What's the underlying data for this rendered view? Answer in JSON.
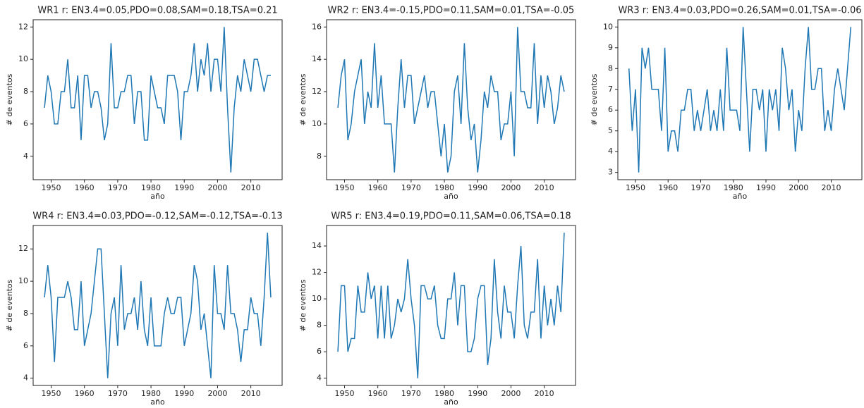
{
  "chart_data": [
    {
      "type": "line",
      "title": "WR1 r: EN3.4=0.05,PDO=0.08,SAM=0.18,TSA=0.21",
      "xlabel": "año",
      "ylabel": "# de eventos",
      "color": "#1f77b4",
      "x": [
        1948,
        1949,
        1950,
        1951,
        1952,
        1953,
        1954,
        1955,
        1956,
        1957,
        1958,
        1959,
        1960,
        1961,
        1962,
        1963,
        1964,
        1965,
        1966,
        1967,
        1968,
        1969,
        1970,
        1971,
        1972,
        1973,
        1974,
        1975,
        1976,
        1977,
        1978,
        1979,
        1980,
        1981,
        1982,
        1983,
        1984,
        1985,
        1986,
        1987,
        1988,
        1989,
        1990,
        1991,
        1992,
        1993,
        1994,
        1995,
        1996,
        1997,
        1998,
        1999,
        2000,
        2001,
        2002,
        2003,
        2004,
        2005,
        2006,
        2007,
        2008,
        2009,
        2010,
        2011,
        2012,
        2013,
        2014,
        2015,
        2016
      ],
      "values": [
        7,
        9,
        8,
        6,
        6,
        8,
        8,
        10,
        7,
        7,
        9,
        5,
        9,
        9,
        7,
        8,
        8,
        7,
        5,
        6,
        11,
        7,
        7,
        8,
        8,
        9,
        9,
        6,
        8,
        8,
        5,
        5,
        9,
        8,
        7,
        7,
        6,
        9,
        9,
        9,
        8,
        5,
        8,
        8,
        9,
        11,
        8,
        10,
        9,
        11,
        8,
        10,
        10,
        8,
        12,
        7,
        3,
        7,
        9,
        8,
        10,
        9,
        8,
        10,
        10,
        9,
        8,
        9,
        9
      ],
      "xlim": [
        1944.6,
        2019.4
      ],
      "xticks": [
        1950,
        1960,
        1970,
        1980,
        1990,
        2000,
        2010
      ],
      "ylim": [
        2.55,
        12.45
      ],
      "yticks": [
        4,
        6,
        8,
        10,
        12
      ]
    },
    {
      "type": "line",
      "title": "WR2 r: EN3.4=-0.15,PDO=0.11,SAM=0.01,TSA=-0.05",
      "xlabel": "año",
      "ylabel": "# de eventos",
      "color": "#1f77b4",
      "x": [
        1948,
        1949,
        1950,
        1951,
        1952,
        1953,
        1954,
        1955,
        1956,
        1957,
        1958,
        1959,
        1960,
        1961,
        1962,
        1963,
        1964,
        1965,
        1966,
        1967,
        1968,
        1969,
        1970,
        1971,
        1972,
        1973,
        1974,
        1975,
        1976,
        1977,
        1978,
        1979,
        1980,
        1981,
        1982,
        1983,
        1984,
        1985,
        1986,
        1987,
        1988,
        1989,
        1990,
        1991,
        1992,
        1993,
        1994,
        1995,
        1996,
        1997,
        1998,
        1999,
        2000,
        2001,
        2002,
        2003,
        2004,
        2005,
        2006,
        2007,
        2008,
        2009,
        2010,
        2011,
        2012,
        2013,
        2014,
        2015,
        2016
      ],
      "values": [
        11,
        13,
        14,
        9,
        10,
        12,
        13,
        14,
        10,
        12,
        11,
        15,
        11,
        13,
        10,
        10,
        10,
        7,
        11,
        14,
        11,
        13,
        13,
        10,
        11,
        12,
        13,
        11,
        12,
        12,
        10,
        8,
        10,
        7,
        8,
        12,
        13,
        10,
        15,
        11,
        9,
        10,
        7,
        9,
        12,
        11,
        13,
        12,
        12,
        9,
        10,
        10,
        12,
        8,
        16,
        12,
        12,
        11,
        11,
        15,
        10,
        13,
        11,
        13,
        12,
        10,
        11,
        13,
        12
      ],
      "xlim": [
        1944.6,
        2019.4
      ],
      "xticks": [
        1950,
        1960,
        1970,
        1980,
        1990,
        2000,
        2010
      ],
      "ylim": [
        6.55,
        16.45
      ],
      "yticks": [
        8,
        10,
        12,
        14,
        16
      ]
    },
    {
      "type": "line",
      "title": "WR3 r: EN3.4=0.03,PDO=0.26,SAM=0.01,TSA=-0.06",
      "xlabel": "año",
      "ylabel": "# de eventos",
      "color": "#1f77b4",
      "x": [
        1948,
        1949,
        1950,
        1951,
        1952,
        1953,
        1954,
        1955,
        1956,
        1957,
        1958,
        1959,
        1960,
        1961,
        1962,
        1963,
        1964,
        1965,
        1966,
        1967,
        1968,
        1969,
        1970,
        1971,
        1972,
        1973,
        1974,
        1975,
        1976,
        1977,
        1978,
        1979,
        1980,
        1981,
        1982,
        1983,
        1984,
        1985,
        1986,
        1987,
        1988,
        1989,
        1990,
        1991,
        1992,
        1993,
        1994,
        1995,
        1996,
        1997,
        1998,
        1999,
        2000,
        2001,
        2002,
        2003,
        2004,
        2005,
        2006,
        2007,
        2008,
        2009,
        2010,
        2011,
        2012,
        2013,
        2014,
        2015,
        2016
      ],
      "values": [
        8,
        5,
        7,
        3,
        9,
        8,
        9,
        7,
        7,
        7,
        5,
        9,
        4,
        5,
        5,
        4,
        6,
        6,
        7,
        7,
        5,
        6,
        5,
        6,
        7,
        5,
        6,
        5,
        7,
        5,
        9,
        6,
        6,
        6,
        5,
        10,
        7,
        4,
        7,
        7,
        6,
        7,
        4,
        7,
        6,
        7,
        5,
        9,
        8,
        6,
        7,
        4,
        6,
        5,
        8,
        10,
        7,
        7,
        8,
        8,
        5,
        6,
        5,
        7,
        8,
        7,
        6,
        8,
        10
      ],
      "xlim": [
        1944.6,
        2019.4
      ],
      "xticks": [
        1950,
        1960,
        1970,
        1980,
        1990,
        2000,
        2010
      ],
      "ylim": [
        2.65,
        10.35
      ],
      "yticks": [
        3,
        4,
        5,
        6,
        7,
        8,
        9,
        10
      ]
    },
    {
      "type": "line",
      "title": "WR4 r: EN3.4=0.03,PDO=-0.12,SAM=-0.12,TSA=-0.13",
      "xlabel": "año",
      "ylabel": "# de eventos",
      "color": "#1f77b4",
      "x": [
        1948,
        1949,
        1950,
        1951,
        1952,
        1953,
        1954,
        1955,
        1956,
        1957,
        1958,
        1959,
        1960,
        1961,
        1962,
        1963,
        1964,
        1965,
        1966,
        1967,
        1968,
        1969,
        1970,
        1971,
        1972,
        1973,
        1974,
        1975,
        1976,
        1977,
        1978,
        1979,
        1980,
        1981,
        1982,
        1983,
        1984,
        1985,
        1986,
        1987,
        1988,
        1989,
        1990,
        1991,
        1992,
        1993,
        1994,
        1995,
        1996,
        1997,
        1998,
        1999,
        2000,
        2001,
        2002,
        2003,
        2004,
        2005,
        2006,
        2007,
        2008,
        2009,
        2010,
        2011,
        2012,
        2013,
        2014,
        2015,
        2016
      ],
      "values": [
        9,
        11,
        9,
        5,
        9,
        9,
        9,
        10,
        9,
        7,
        7,
        10,
        6,
        7,
        8,
        10,
        12,
        12,
        8,
        4,
        8,
        9,
        6,
        11,
        7,
        8,
        8,
        9,
        7,
        10,
        7,
        6,
        9,
        6,
        6,
        6,
        8,
        9,
        8,
        8,
        9,
        9,
        6,
        7,
        8,
        11,
        10,
        7,
        8,
        6,
        4,
        11,
        8,
        8,
        7,
        11,
        8,
        8,
        7,
        5,
        7,
        7,
        9,
        8,
        8,
        6,
        9,
        13,
        9
      ],
      "xlim": [
        1944.6,
        2019.4
      ],
      "xticks": [
        1950,
        1960,
        1970,
        1980,
        1990,
        2000,
        2010
      ],
      "ylim": [
        3.55,
        13.45
      ],
      "yticks": [
        4,
        6,
        8,
        10,
        12
      ]
    },
    {
      "type": "line",
      "title": "WR5 r: EN3.4=0.19,PDO=0.11,SAM=0.06,TSA=0.18",
      "xlabel": "año",
      "ylabel": "# de eventos",
      "color": "#1f77b4",
      "x": [
        1948,
        1949,
        1950,
        1951,
        1952,
        1953,
        1954,
        1955,
        1956,
        1957,
        1958,
        1959,
        1960,
        1961,
        1962,
        1963,
        1964,
        1965,
        1966,
        1967,
        1968,
        1969,
        1970,
        1971,
        1972,
        1973,
        1974,
        1975,
        1976,
        1977,
        1978,
        1979,
        1980,
        1981,
        1982,
        1983,
        1984,
        1985,
        1986,
        1987,
        1988,
        1989,
        1990,
        1991,
        1992,
        1993,
        1994,
        1995,
        1996,
        1997,
        1998,
        1999,
        2000,
        2001,
        2002,
        2003,
        2004,
        2005,
        2006,
        2007,
        2008,
        2009,
        2010,
        2011,
        2012,
        2013,
        2014,
        2015,
        2016
      ],
      "values": [
        6,
        11,
        11,
        6,
        7,
        7,
        11,
        9,
        9,
        12,
        10,
        11,
        7,
        11,
        7,
        11,
        7,
        8,
        10,
        9,
        10,
        13,
        10,
        8,
        4,
        11,
        11,
        10,
        10,
        11,
        8,
        7,
        7,
        10,
        10,
        12,
        8,
        11,
        11,
        6,
        6,
        7,
        10,
        11,
        11,
        5,
        7,
        13,
        9,
        7,
        11,
        9,
        9,
        7,
        11,
        14,
        8,
        7,
        9,
        9,
        13,
        7,
        11,
        8,
        10,
        8,
        11,
        9,
        15
      ],
      "xlim": [
        1944.6,
        2019.4
      ],
      "xticks": [
        1950,
        1960,
        1970,
        1980,
        1990,
        2000,
        2010
      ],
      "ylim": [
        3.45,
        15.55
      ],
      "yticks": [
        4,
        6,
        8,
        10,
        12,
        14
      ]
    }
  ]
}
